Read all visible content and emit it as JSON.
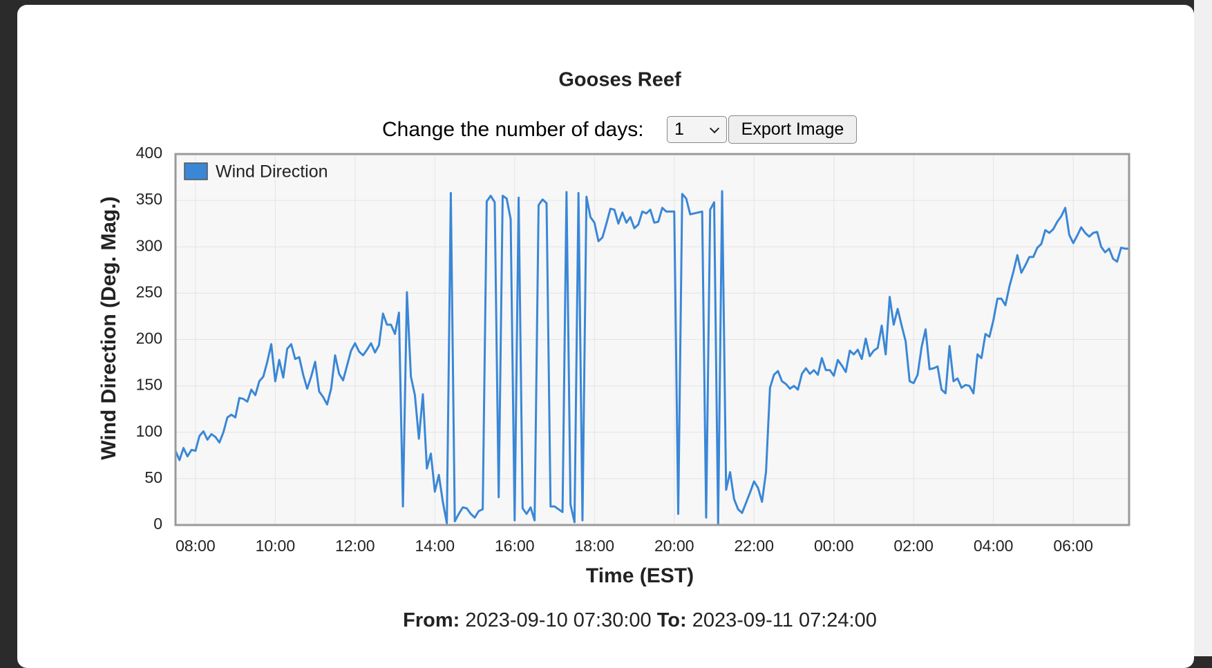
{
  "chart_data": {
    "type": "line",
    "title": "Gooses Reef",
    "x_label": "Time (EST)",
    "y_label": "Wind Direction (Deg. Mag.)",
    "x": [
      "07:30",
      "07:36",
      "07:42",
      "07:48",
      "07:54",
      "08:00",
      "08:06",
      "08:12",
      "08:18",
      "08:24",
      "08:30",
      "08:36",
      "08:42",
      "08:48",
      "08:54",
      "09:00",
      "09:06",
      "09:12",
      "09:18",
      "09:24",
      "09:30",
      "09:36",
      "09:42",
      "09:48",
      "09:54",
      "10:00",
      "10:06",
      "10:12",
      "10:18",
      "10:24",
      "10:30",
      "10:36",
      "10:42",
      "10:48",
      "10:54",
      "11:00",
      "11:06",
      "11:12",
      "11:18",
      "11:24",
      "11:30",
      "11:36",
      "11:42",
      "11:48",
      "11:54",
      "12:00",
      "12:06",
      "12:12",
      "12:18",
      "12:24",
      "12:30",
      "12:36",
      "12:42",
      "12:48",
      "12:54",
      "13:00",
      "13:06",
      "13:12",
      "13:18",
      "13:24",
      "13:30",
      "13:36",
      "13:42",
      "13:48",
      "13:54",
      "14:00",
      "14:06",
      "14:12",
      "14:18",
      "14:24",
      "14:30",
      "14:36",
      "14:42",
      "14:48",
      "14:54",
      "15:00",
      "15:06",
      "15:12",
      "15:18",
      "15:24",
      "15:30",
      "15:36",
      "15:42",
      "15:48",
      "15:54",
      "16:00",
      "16:06",
      "16:12",
      "16:18",
      "16:24",
      "16:30",
      "16:36",
      "16:42",
      "16:48",
      "16:54",
      "17:00",
      "17:06",
      "17:12",
      "17:18",
      "17:24",
      "17:30",
      "17:36",
      "17:42",
      "17:48",
      "17:54",
      "18:00",
      "18:06",
      "18:12",
      "18:18",
      "18:24",
      "18:30",
      "18:36",
      "18:42",
      "18:48",
      "18:54",
      "19:00",
      "19:06",
      "19:12",
      "19:18",
      "19:24",
      "19:30",
      "19:36",
      "19:42",
      "19:48",
      "19:54",
      "20:00",
      "20:06",
      "20:12",
      "20:18",
      "20:24",
      "20:30",
      "20:36",
      "20:42",
      "20:48",
      "20:54",
      "21:00",
      "21:06",
      "21:12",
      "21:18",
      "21:24",
      "21:30",
      "21:36",
      "21:42",
      "21:48",
      "21:54",
      "22:00",
      "22:06",
      "22:12",
      "22:18",
      "22:24",
      "22:30",
      "22:36",
      "22:42",
      "22:48",
      "22:54",
      "23:00",
      "23:06",
      "23:12",
      "23:18",
      "23:24",
      "23:30",
      "23:36",
      "23:42",
      "23:48",
      "23:54",
      "00:00",
      "00:06",
      "00:12",
      "00:18",
      "00:24",
      "00:30",
      "00:36",
      "00:42",
      "00:48",
      "00:54",
      "01:00",
      "01:06",
      "01:12",
      "01:18",
      "01:24",
      "01:30",
      "01:36",
      "01:42",
      "01:48",
      "01:54",
      "02:00",
      "02:06",
      "02:12",
      "02:18",
      "02:24",
      "02:30",
      "02:36",
      "02:42",
      "02:48",
      "02:54",
      "03:00",
      "03:06",
      "03:12",
      "03:18",
      "03:24",
      "03:30",
      "03:36",
      "03:42",
      "03:48",
      "03:54",
      "04:00",
      "04:06",
      "04:12",
      "04:18",
      "04:24",
      "04:30",
      "04:36",
      "04:42",
      "04:48",
      "04:54",
      "05:00",
      "05:06",
      "05:12",
      "05:18",
      "05:24",
      "05:30",
      "05:36",
      "05:42",
      "05:48",
      "05:54",
      "06:00",
      "06:06",
      "06:12",
      "06:18",
      "06:24",
      "06:30",
      "06:36",
      "06:42",
      "06:48",
      "06:54",
      "07:00",
      "07:06",
      "07:12",
      "07:18",
      "07:24"
    ],
    "series": [
      {
        "name": "Wind Direction",
        "color": "#3a87d6",
        "values": [
          80,
          70,
          83,
          74,
          81,
          80,
          96,
          101,
          92,
          98,
          95,
          89,
          100,
          116,
          119,
          116,
          137,
          136,
          133,
          146,
          140,
          155,
          160,
          176,
          195,
          155,
          178,
          159,
          190,
          195,
          179,
          181,
          162,
          147,
          160,
          176,
          144,
          138,
          130,
          147,
          183,
          163,
          156,
          172,
          188,
          196,
          187,
          183,
          189,
          196,
          186,
          194,
          228,
          216,
          216,
          206,
          229,
          20,
          251,
          160,
          140,
          93,
          141,
          61,
          77,
          36,
          54,
          25,
          2,
          358,
          4,
          12,
          19,
          18,
          12,
          8,
          15,
          17,
          349,
          355,
          348,
          30,
          355,
          352,
          330,
          5,
          353,
          18,
          12,
          19,
          5,
          345,
          351,
          347,
          20,
          20,
          17,
          14,
          359,
          22,
          3,
          358,
          5,
          354,
          332,
          326,
          306,
          310,
          325,
          341,
          340,
          325,
          337,
          326,
          332,
          320,
          324,
          338,
          336,
          340,
          326,
          327,
          342,
          338,
          338,
          338,
          12,
          357,
          352,
          335,
          336,
          337,
          338,
          8,
          340,
          348,
          1,
          360,
          38,
          57,
          28,
          17,
          13,
          24,
          35,
          47,
          40,
          25,
          57,
          148,
          162,
          166,
          155,
          152,
          147,
          150,
          146,
          163,
          169,
          163,
          167,
          162,
          180,
          167,
          167,
          161,
          178,
          172,
          165,
          188,
          184,
          189,
          179,
          201,
          182,
          188,
          191,
          215,
          184,
          246,
          216,
          233,
          215,
          198,
          155,
          153,
          162,
          192,
          211,
          168,
          169,
          171,
          146,
          142,
          193,
          155,
          158,
          148,
          151,
          150,
          142,
          184,
          180,
          206,
          203,
          221,
          244,
          244,
          237,
          257,
          273,
          291,
          272,
          280,
          289,
          289,
          299,
          303,
          318,
          315,
          319,
          327,
          333,
          342,
          313,
          304,
          312,
          321,
          315,
          311,
          315,
          316,
          300,
          294,
          298,
          287,
          284,
          299,
          298,
          298
        ]
      }
    ],
    "xlim": [
      "07:30",
      "07:24"
    ],
    "xticks": [
      "08:00",
      "10:00",
      "12:00",
      "14:00",
      "16:00",
      "18:00",
      "20:00",
      "22:00",
      "00:00",
      "02:00",
      "04:00",
      "06:00"
    ],
    "ylim": [
      0,
      400
    ],
    "yticks": [
      0,
      50,
      100,
      150,
      200,
      250,
      300,
      350,
      400
    ],
    "grid": true,
    "legend": "top-left"
  },
  "controls": {
    "days_label": "Change the number of days:",
    "days_value": "1",
    "export_button": "Export Image"
  },
  "range": {
    "from_label": "From:",
    "from": "2023-09-10 07:30:00",
    "to_label": "To:",
    "to": "2023-09-11 07:24:00"
  }
}
